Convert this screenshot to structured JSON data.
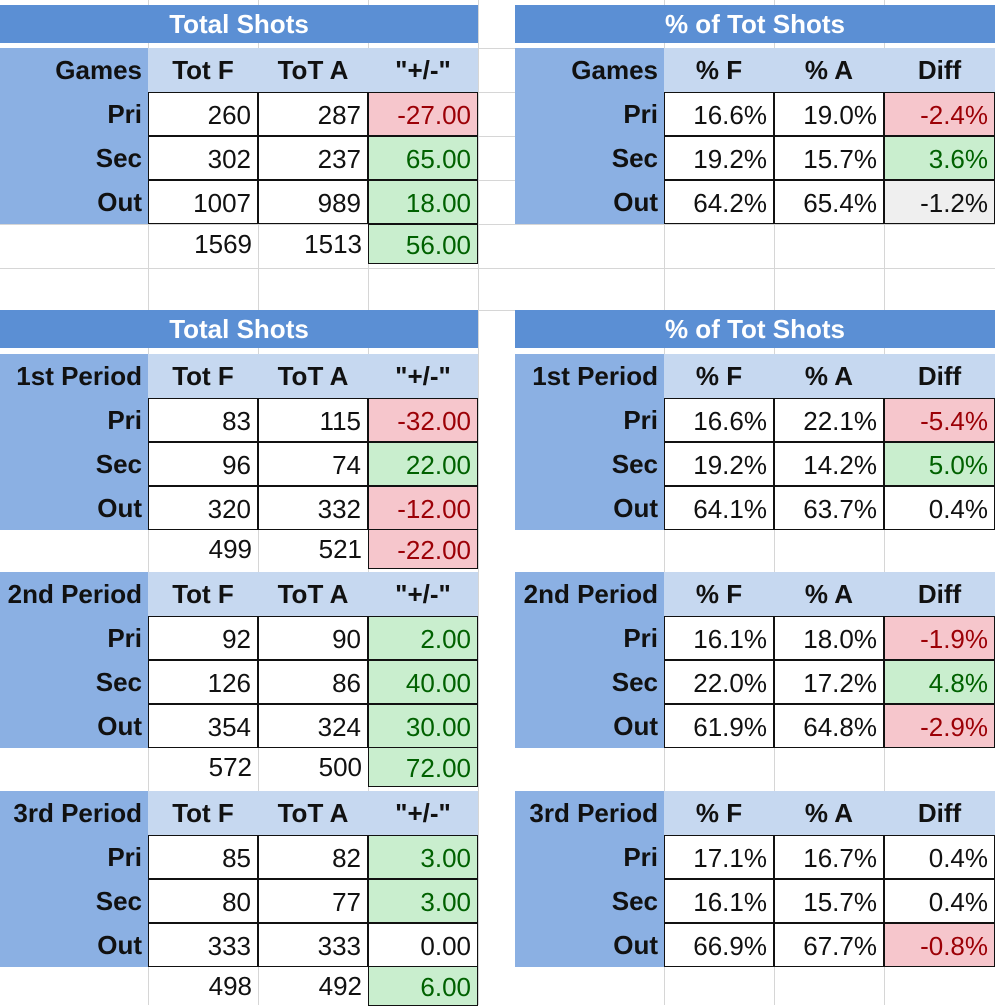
{
  "tables": [
    {
      "title": "Total Shots",
      "label": "Games",
      "cols": [
        "Tot F",
        "ToT A",
        "\"+/-\""
      ],
      "rows": [
        {
          "name": "Pri",
          "f": "260",
          "a": "287",
          "d": "-27.00",
          "style": "red"
        },
        {
          "name": "Sec",
          "f": "302",
          "a": "237",
          "d": "65.00",
          "style": "green"
        },
        {
          "name": "Out",
          "f": "1007",
          "a": "989",
          "d": "18.00",
          "style": "green"
        }
      ],
      "total": {
        "f": "1569",
        "a": "1513",
        "d": "56.00",
        "style": "green"
      }
    },
    {
      "title": "% of Tot Shots",
      "label": "Games",
      "cols": [
        "% F",
        "% A",
        "Diff"
      ],
      "rows": [
        {
          "name": "Pri",
          "f": "16.6%",
          "a": "19.0%",
          "d": "-2.4%",
          "style": "red"
        },
        {
          "name": "Sec",
          "f": "19.2%",
          "a": "15.7%",
          "d": "3.6%",
          "style": "green"
        },
        {
          "name": "Out",
          "f": "64.2%",
          "a": "65.4%",
          "d": "-1.2%",
          "style": "gray"
        }
      ]
    },
    {
      "title": "Total Shots",
      "label": "1st Period",
      "cols": [
        "Tot F",
        "ToT A",
        "\"+/-\""
      ],
      "rows": [
        {
          "name": "Pri",
          "f": "83",
          "a": "115",
          "d": "-32.00",
          "style": "red"
        },
        {
          "name": "Sec",
          "f": "96",
          "a": "74",
          "d": "22.00",
          "style": "green"
        },
        {
          "name": "Out",
          "f": "320",
          "a": "332",
          "d": "-12.00",
          "style": "red"
        }
      ],
      "total": {
        "f": "499",
        "a": "521",
        "d": "-22.00",
        "style": "red"
      }
    },
    {
      "title": "% of Tot Shots",
      "label": "1st Period",
      "cols": [
        "% F",
        "% A",
        "Diff"
      ],
      "rows": [
        {
          "name": "Pri",
          "f": "16.6%",
          "a": "22.1%",
          "d": "-5.4%",
          "style": "red"
        },
        {
          "name": "Sec",
          "f": "19.2%",
          "a": "14.2%",
          "d": "5.0%",
          "style": "green"
        },
        {
          "name": "Out",
          "f": "64.1%",
          "a": "63.7%",
          "d": "0.4%",
          "style": "plain"
        }
      ]
    },
    {
      "label": "2nd Period",
      "cols": [
        "Tot F",
        "ToT A",
        "\"+/-\""
      ],
      "rows": [
        {
          "name": "Pri",
          "f": "92",
          "a": "90",
          "d": "2.00",
          "style": "green"
        },
        {
          "name": "Sec",
          "f": "126",
          "a": "86",
          "d": "40.00",
          "style": "green"
        },
        {
          "name": "Out",
          "f": "354",
          "a": "324",
          "d": "30.00",
          "style": "green"
        }
      ],
      "total": {
        "f": "572",
        "a": "500",
        "d": "72.00",
        "style": "green"
      }
    },
    {
      "label": "2nd Period",
      "cols": [
        "% F",
        "% A",
        "Diff"
      ],
      "rows": [
        {
          "name": "Pri",
          "f": "16.1%",
          "a": "18.0%",
          "d": "-1.9%",
          "style": "red"
        },
        {
          "name": "Sec",
          "f": "22.0%",
          "a": "17.2%",
          "d": "4.8%",
          "style": "green"
        },
        {
          "name": "Out",
          "f": "61.9%",
          "a": "64.8%",
          "d": "-2.9%",
          "style": "red"
        }
      ]
    },
    {
      "label": "3rd Period",
      "cols": [
        "Tot F",
        "ToT A",
        "\"+/-\""
      ],
      "rows": [
        {
          "name": "Pri",
          "f": "85",
          "a": "82",
          "d": "3.00",
          "style": "green"
        },
        {
          "name": "Sec",
          "f": "80",
          "a": "77",
          "d": "3.00",
          "style": "green"
        },
        {
          "name": "Out",
          "f": "333",
          "a": "333",
          "d": "0.00",
          "style": "plain"
        }
      ],
      "total": {
        "f": "498",
        "a": "492",
        "d": "6.00",
        "style": "green"
      }
    },
    {
      "label": "3rd Period",
      "cols": [
        "% F",
        "% A",
        "Diff"
      ],
      "rows": [
        {
          "name": "Pri",
          "f": "17.1%",
          "a": "16.7%",
          "d": "0.4%",
          "style": "plain"
        },
        {
          "name": "Sec",
          "f": "16.1%",
          "a": "15.7%",
          "d": "0.4%",
          "style": "plain"
        },
        {
          "name": "Out",
          "f": "66.9%",
          "a": "67.7%",
          "d": "-0.8%",
          "style": "red"
        }
      ]
    }
  ]
}
